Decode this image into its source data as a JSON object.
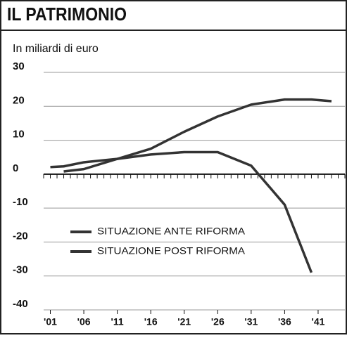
{
  "chart_data": {
    "type": "line",
    "title": "IL PATRIMONIO",
    "subtitle": "In miliardi di euro",
    "x": [
      2001,
      2003,
      2006,
      2011,
      2016,
      2021,
      2026,
      2031,
      2036,
      2040,
      2043
    ],
    "series": [
      {
        "name": "SITUAZIONE ANTE RIFORMA",
        "color": "#333333",
        "values": [
          null,
          0.8,
          1.5,
          4.5,
          5.8,
          6.5,
          6.5,
          2.5,
          -9,
          -29,
          null
        ]
      },
      {
        "name": "SITUAZIONE POST RIFORMA",
        "color": "#333333",
        "values": [
          2.1,
          2.3,
          3.5,
          4.5,
          7.5,
          12.5,
          17,
          20.5,
          22,
          22,
          21.5
        ]
      }
    ],
    "xlim": [
      2000,
      2045
    ],
    "xticks": [
      {
        "value": 2001,
        "label": "'01"
      },
      {
        "value": 2006,
        "label": "'06"
      },
      {
        "value": 2011,
        "label": "'11"
      },
      {
        "value": 2016,
        "label": "'16"
      },
      {
        "value": 2021,
        "label": "'21"
      },
      {
        "value": 2026,
        "label": "'26"
      },
      {
        "value": 2031,
        "label": "'31"
      },
      {
        "value": 2036,
        "label": "'36"
      },
      {
        "value": 2041,
        "label": "'41"
      }
    ],
    "ylim": [
      -40,
      30
    ],
    "yticks": [
      -40,
      -30,
      -20,
      -10,
      0,
      10,
      20,
      30
    ],
    "grid": true,
    "legend": "lower-left"
  }
}
